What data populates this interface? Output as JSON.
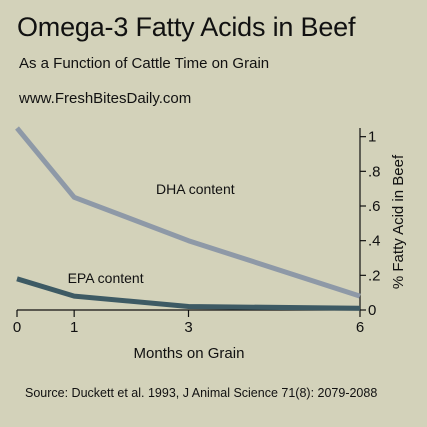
{
  "chart_data": {
    "type": "line",
    "title": "Omega-3 Fatty Acids in Beef",
    "subtitle": "As a Function of Cattle Time on Grain",
    "website": "www.FreshBitesDaily.com",
    "xlabel": "Months on Grain",
    "ylabel": "% Fatty Acid in Beef",
    "x_ticks": [
      0,
      1,
      3,
      6
    ],
    "y_ticks": [
      "0",
      ".2",
      ".4",
      ".6",
      ".8",
      "1"
    ],
    "y_tick_values": [
      0,
      0.2,
      0.4,
      0.6,
      0.8,
      1.0
    ],
    "xlim": [
      0,
      6
    ],
    "ylim": [
      0,
      1.05
    ],
    "grid": false,
    "y_axis_side": "right",
    "series": [
      {
        "name": "DHA content",
        "color": "#8e99a7",
        "x": [
          0,
          1,
          3,
          6
        ],
        "values": [
          1.05,
          0.65,
          0.4,
          0.08
        ]
      },
      {
        "name": "EPA content",
        "color": "#3d5a64",
        "x": [
          0,
          1,
          3,
          6
        ],
        "values": [
          0.18,
          0.08,
          0.02,
          0.01
        ]
      }
    ],
    "source": "Source:  Duckett et al. 1993, J Animal Science 71(8): 2079-2088"
  }
}
